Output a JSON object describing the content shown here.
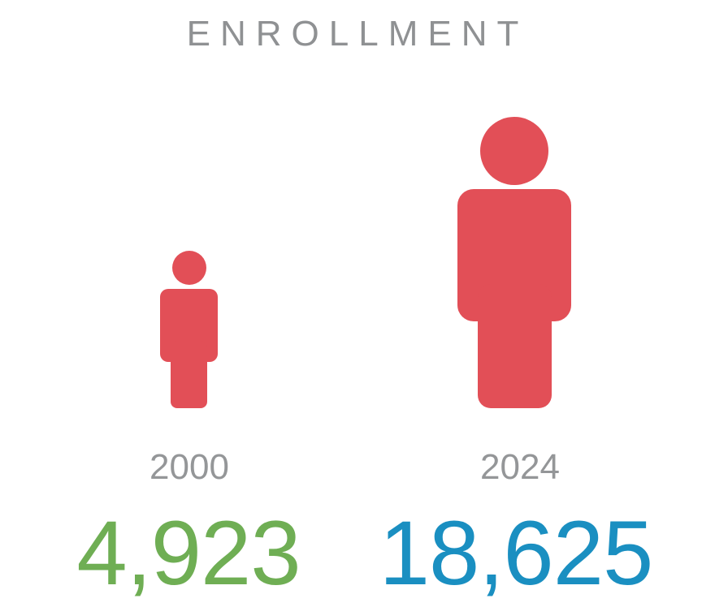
{
  "chart_data": {
    "type": "pictogram",
    "title": "ENROLLMENT",
    "categories": [
      "2000",
      "2024"
    ],
    "values": [
      4923,
      18625
    ],
    "value_labels": [
      "4,923",
      "18,625"
    ],
    "colors": {
      "figure": "#e24f57",
      "value_2000": "#6fae54",
      "value_2024": "#1a8fc1",
      "title": "#8f9193",
      "year": "#949698"
    },
    "icon": "person-icon"
  }
}
